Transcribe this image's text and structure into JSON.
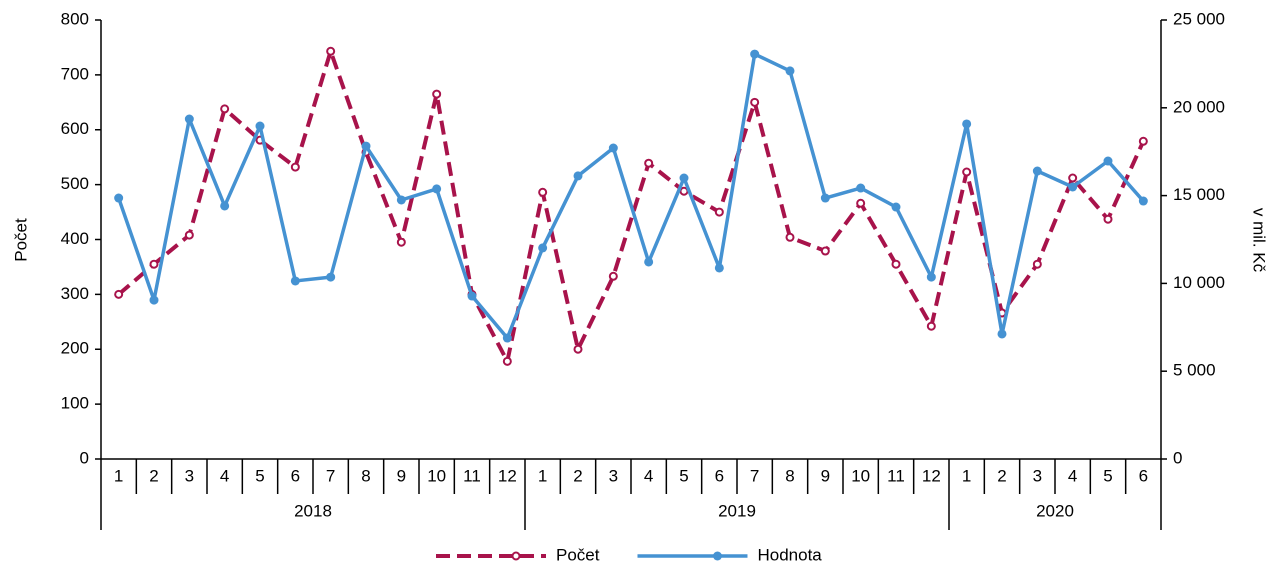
{
  "chart_data": {
    "type": "line",
    "y_label": "Počet",
    "y2_label": "v mil. Kč",
    "category_groups": [
      {
        "name": "2018",
        "categories": [
          "1",
          "2",
          "3",
          "4",
          "5",
          "6",
          "7",
          "8",
          "9",
          "10",
          "11",
          "12"
        ]
      },
      {
        "name": "2019",
        "categories": [
          "1",
          "2",
          "3",
          "4",
          "5",
          "6",
          "7",
          "8",
          "9",
          "10",
          "11",
          "12"
        ]
      },
      {
        "name": "2020",
        "categories": [
          "1",
          "2",
          "3",
          "4",
          "5",
          "6"
        ]
      }
    ],
    "series": [
      {
        "name": "Počet",
        "color": "#a8134b",
        "dashed": true,
        "marker": "hollow-circle",
        "axis": "y",
        "values": [
          300,
          355,
          408,
          638,
          581,
          532,
          743,
          559,
          395,
          665,
          300,
          178,
          486,
          200,
          333,
          539,
          488,
          450,
          650,
          404,
          379,
          466,
          355,
          242,
          523,
          266,
          355,
          512,
          437,
          579
        ]
      },
      {
        "name": "Hodnota",
        "color": "#4592d2",
        "dashed": false,
        "marker": "circle",
        "axis": "y2",
        "values": [
          14860,
          9050,
          19360,
          14410,
          18960,
          10140,
          10360,
          17820,
          14750,
          15380,
          9280,
          6890,
          12020,
          16120,
          17710,
          11220,
          16000,
          10880,
          23060,
          22100,
          14860,
          15430,
          14350,
          10360,
          19080,
          7120,
          16400,
          15490,
          16970,
          14690
        ]
      }
    ],
    "ylim": [
      0,
      800
    ],
    "yticks": [
      0,
      100,
      200,
      300,
      400,
      500,
      600,
      700,
      800
    ],
    "y2lim": [
      0,
      25000
    ],
    "y2ticks": [
      0,
      {
        "value": 5000,
        "label": "5 000"
      },
      {
        "value": 10000,
        "label": "10 000"
      },
      {
        "value": 15000,
        "label": "15 000"
      },
      {
        "value": 20000,
        "label": "20 000"
      },
      {
        "value": 25000,
        "label": "25 000"
      }
    ],
    "legend": "bottom"
  }
}
